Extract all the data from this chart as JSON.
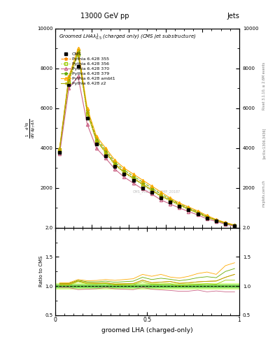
{
  "title_top": "13000 GeV pp",
  "title_right": "Jets",
  "xlabel": "groomed LHA (charged-only)",
  "right_label1": "Rivet 3.1.10, ≥ 2.6M events",
  "right_label2": "[arXiv:1306.3436]",
  "right_label3": "mcplots.cern.ch",
  "watermark": "CMS_2021_PAS_SMP_20187",
  "cms_label": "CMS",
  "x_data": [
    0.025,
    0.075,
    0.125,
    0.175,
    0.225,
    0.275,
    0.325,
    0.375,
    0.425,
    0.475,
    0.525,
    0.575,
    0.625,
    0.675,
    0.725,
    0.775,
    0.825,
    0.875,
    0.925,
    0.975
  ],
  "cms_data": [
    3800,
    7200,
    8100,
    5500,
    4200,
    3600,
    3100,
    2700,
    2400,
    2000,
    1800,
    1500,
    1300,
    1100,
    900,
    700,
    500,
    350,
    200,
    100
  ],
  "p355_data": [
    3900,
    7400,
    8800,
    5800,
    4400,
    3800,
    3200,
    2800,
    2500,
    2200,
    1900,
    1600,
    1400,
    1150,
    950,
    750,
    540,
    380,
    230,
    120
  ],
  "p356_data": [
    3850,
    7300,
    8700,
    5700,
    4350,
    3750,
    3150,
    2750,
    2450,
    2150,
    1850,
    1550,
    1350,
    1100,
    920,
    720,
    520,
    360,
    220,
    110
  ],
  "p370_data": [
    3700,
    7000,
    7600,
    5200,
    4000,
    3500,
    2950,
    2550,
    2250,
    1950,
    1700,
    1400,
    1200,
    1000,
    820,
    650,
    450,
    320,
    180,
    90
  ],
  "p379_data": [
    3950,
    7500,
    8900,
    5900,
    4500,
    3900,
    3300,
    2900,
    2600,
    2300,
    2000,
    1700,
    1450,
    1200,
    1000,
    800,
    580,
    400,
    250,
    130
  ],
  "pambt1_data": [
    4000,
    7600,
    9000,
    6000,
    4600,
    4000,
    3400,
    3000,
    2700,
    2400,
    2100,
    1800,
    1500,
    1250,
    1050,
    850,
    620,
    420,
    270,
    140
  ],
  "pz2_data": [
    3950,
    7500,
    8800,
    5800,
    4400,
    3800,
    3200,
    2800,
    2500,
    2200,
    1900,
    1600,
    1400,
    1150,
    950,
    750,
    540,
    380,
    230,
    120
  ],
  "color_cms": "#000000",
  "color_p355": "#ff8c00",
  "color_p356": "#99cc00",
  "color_p370": "#cc6688",
  "color_p379": "#66aa00",
  "color_pambt1": "#ffaa00",
  "color_pz2": "#aaaa00",
  "bg_color": "#ffffff",
  "ratio_band_color_outer": "#ccff66",
  "ratio_band_color_inner": "#66cc44",
  "ylim_main": [
    0,
    10000
  ],
  "ylim_ratio": [
    0.5,
    2.0
  ],
  "xlim": [
    0.0,
    1.0
  ]
}
